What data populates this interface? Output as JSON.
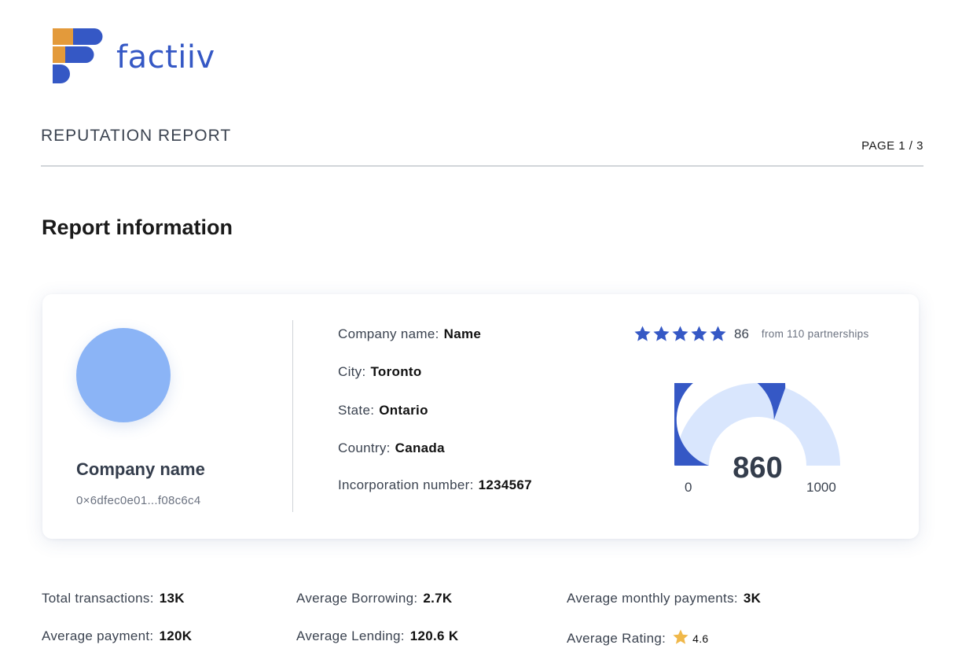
{
  "brand": {
    "name": "factiiv",
    "logo_icon": "factiiv-logo-icon",
    "primary_color": "#3558c5",
    "accent_color": "#e39a3b"
  },
  "header": {
    "title": "REPUTATION REPORT",
    "page": "PAGE 1 / 3"
  },
  "section": {
    "title": "Report information"
  },
  "company": {
    "display_name": "Company name",
    "wallet": "0×6dfec0e01...f08c6c4",
    "fields": [
      {
        "label": "Company name:",
        "value": "Name"
      },
      {
        "label": "City:",
        "value": "Toronto"
      },
      {
        "label": "State:",
        "value": "Ontario"
      },
      {
        "label": "Country:",
        "value": "Canada"
      },
      {
        "label": "Incorporation number:",
        "value": "1234567"
      }
    ]
  },
  "rating": {
    "stars": 5,
    "count": "86",
    "from_text": "from 110 partnerships",
    "star_color": "#3558c5"
  },
  "gauge": {
    "score": "860",
    "min": "0",
    "max": "1000",
    "value": 860,
    "fill_color": "#3558c5",
    "track_color": "#d9e6fd"
  },
  "stats": {
    "total_transactions": {
      "label": "Total transactions:",
      "value": "13K"
    },
    "average_payment": {
      "label": "Average payment:",
      "value": "120K"
    },
    "average_borrowing": {
      "label": "Average Borrowing:",
      "value": "2.7K"
    },
    "average_lending": {
      "label": "Average Lending:",
      "value": "120.6 K"
    },
    "average_monthly_payments": {
      "label": "Average monthly payments:",
      "value": "3K"
    },
    "average_rating": {
      "label": "Average Rating:",
      "value": "4.6",
      "icon": "star-icon",
      "star_color": "#f0b84a"
    }
  }
}
